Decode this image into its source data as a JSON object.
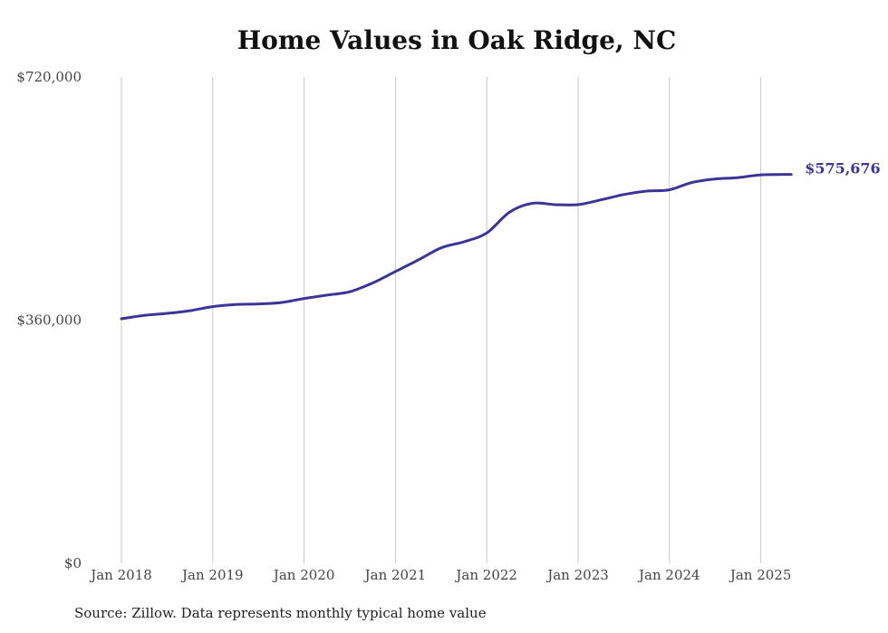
{
  "chart_data": {
    "type": "line",
    "title": "Home Values in Oak Ridge, NC",
    "source": "Source: Zillow. Data represents monthly typical home value",
    "y_ticks": [
      "$0",
      "$360,000",
      "$720,000"
    ],
    "x_ticks": [
      "Jan 2018",
      "Jan 2019",
      "Jan 2020",
      "Jan 2021",
      "Jan 2022",
      "Jan 2023",
      "Jan 2024",
      "Jan 2025"
    ],
    "ylim": [
      0,
      720000
    ],
    "xlim": [
      "2018-01",
      "2025-05"
    ],
    "grid": "vertical",
    "line_color": "#3b3695",
    "end_label": "$575,676",
    "series": [
      {
        "x": [
          "2018-01",
          "2018-04",
          "2018-07",
          "2018-10",
          "2019-01",
          "2019-04",
          "2019-07",
          "2019-10",
          "2020-01",
          "2020-04",
          "2020-07",
          "2020-10",
          "2021-01",
          "2021-04",
          "2021-07",
          "2021-10",
          "2022-01",
          "2022-04",
          "2022-07",
          "2022-10",
          "2023-01",
          "2023-04",
          "2023-07",
          "2023-10",
          "2024-01",
          "2024-04",
          "2024-07",
          "2024-10",
          "2025-01",
          "2025-05"
        ],
        "values": [
          362000,
          367000,
          370000,
          374000,
          380000,
          383000,
          384000,
          386000,
          392000,
          397000,
          402000,
          415000,
          432000,
          449000,
          467000,
          476000,
          489000,
          520000,
          533000,
          531000,
          531000,
          538000,
          546000,
          551000,
          553000,
          564000,
          569000,
          571000,
          575000,
          575676
        ]
      }
    ]
  }
}
